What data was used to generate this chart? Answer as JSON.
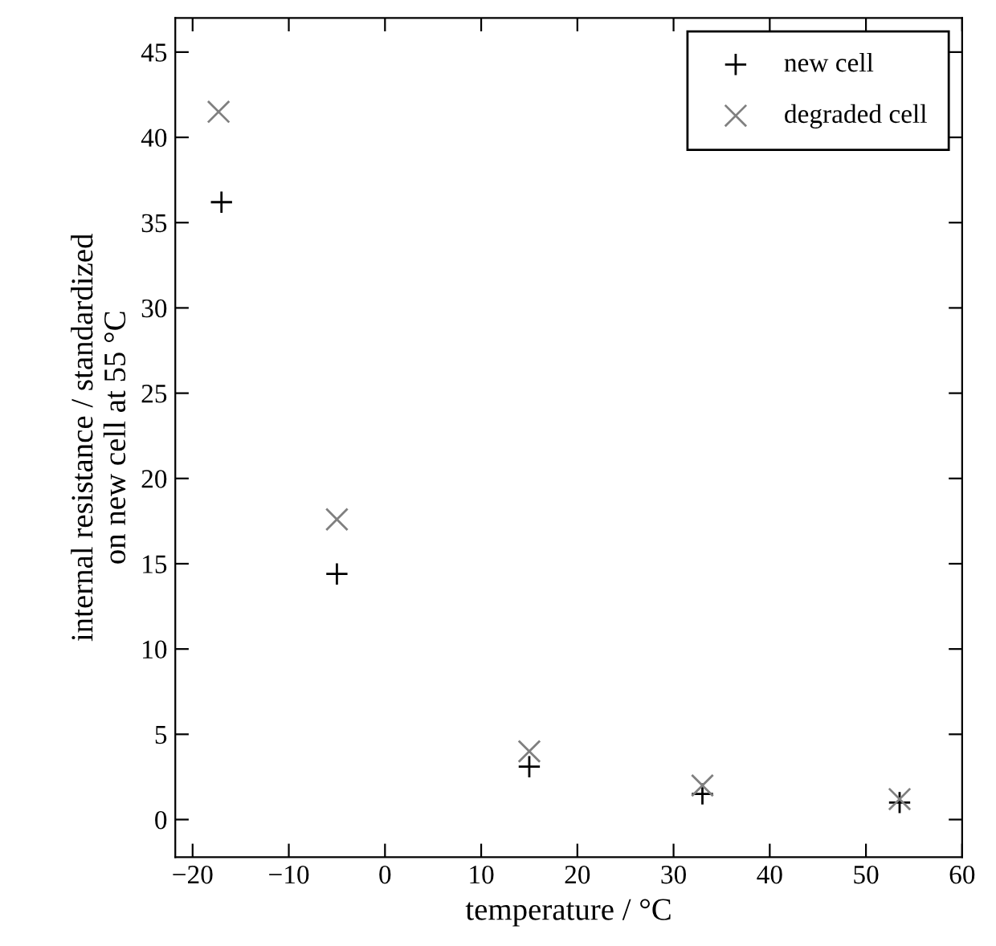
{
  "chart_data": {
    "type": "scatter",
    "xlabel": "temperature / °C",
    "ylabel": "internal resistance / standardized\non new cell at 55 °C",
    "xlim": [
      -21.8,
      60
    ],
    "ylim": [
      -2.2,
      47
    ],
    "xticks": [
      {
        "value": -20,
        "label": "−20"
      },
      {
        "value": -10,
        "label": "−10"
      },
      0,
      10,
      20,
      30,
      40,
      50,
      60
    ],
    "yticks": [
      0,
      5,
      10,
      15,
      20,
      25,
      30,
      35,
      40,
      45
    ],
    "grid": false,
    "legend": "top right",
    "series": [
      {
        "name": "new cell",
        "color": "#000000",
        "marker": "plus",
        "x": [
          -17,
          -5,
          15,
          33,
          53.5
        ],
        "values": [
          36.2,
          14.4,
          3.1,
          1.5,
          1.0
        ]
      },
      {
        "name": "degraded cell",
        "color": "#808080",
        "marker": "cross",
        "x": [
          -17.3,
          -5,
          15,
          33,
          53.5
        ],
        "values": [
          41.5,
          17.6,
          4.0,
          2.0,
          1.2
        ]
      }
    ]
  }
}
